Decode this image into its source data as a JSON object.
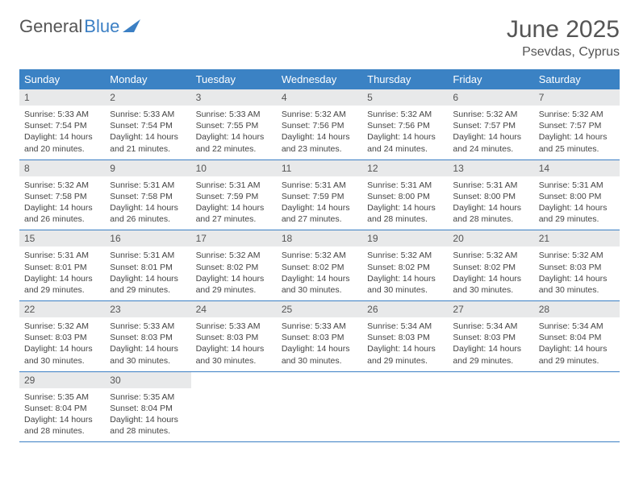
{
  "logo": {
    "gray": "General",
    "blue": "Blue"
  },
  "title": "June 2025",
  "location": "Psevdas, Cyprus",
  "colors": {
    "header_bg": "#3b82c4",
    "daynum_bg": "#e8e9ea",
    "week_border": "#3b7fc4",
    "text": "#444"
  },
  "weekdays": [
    "Sunday",
    "Monday",
    "Tuesday",
    "Wednesday",
    "Thursday",
    "Friday",
    "Saturday"
  ],
  "days": [
    {
      "n": "1",
      "sr": "5:33 AM",
      "ss": "7:54 PM",
      "dl": "14 hours and 20 minutes."
    },
    {
      "n": "2",
      "sr": "5:33 AM",
      "ss": "7:54 PM",
      "dl": "14 hours and 21 minutes."
    },
    {
      "n": "3",
      "sr": "5:33 AM",
      "ss": "7:55 PM",
      "dl": "14 hours and 22 minutes."
    },
    {
      "n": "4",
      "sr": "5:32 AM",
      "ss": "7:56 PM",
      "dl": "14 hours and 23 minutes."
    },
    {
      "n": "5",
      "sr": "5:32 AM",
      "ss": "7:56 PM",
      "dl": "14 hours and 24 minutes."
    },
    {
      "n": "6",
      "sr": "5:32 AM",
      "ss": "7:57 PM",
      "dl": "14 hours and 24 minutes."
    },
    {
      "n": "7",
      "sr": "5:32 AM",
      "ss": "7:57 PM",
      "dl": "14 hours and 25 minutes."
    },
    {
      "n": "8",
      "sr": "5:32 AM",
      "ss": "7:58 PM",
      "dl": "14 hours and 26 minutes."
    },
    {
      "n": "9",
      "sr": "5:31 AM",
      "ss": "7:58 PM",
      "dl": "14 hours and 26 minutes."
    },
    {
      "n": "10",
      "sr": "5:31 AM",
      "ss": "7:59 PM",
      "dl": "14 hours and 27 minutes."
    },
    {
      "n": "11",
      "sr": "5:31 AM",
      "ss": "7:59 PM",
      "dl": "14 hours and 27 minutes."
    },
    {
      "n": "12",
      "sr": "5:31 AM",
      "ss": "8:00 PM",
      "dl": "14 hours and 28 minutes."
    },
    {
      "n": "13",
      "sr": "5:31 AM",
      "ss": "8:00 PM",
      "dl": "14 hours and 28 minutes."
    },
    {
      "n": "14",
      "sr": "5:31 AM",
      "ss": "8:00 PM",
      "dl": "14 hours and 29 minutes."
    },
    {
      "n": "15",
      "sr": "5:31 AM",
      "ss": "8:01 PM",
      "dl": "14 hours and 29 minutes."
    },
    {
      "n": "16",
      "sr": "5:31 AM",
      "ss": "8:01 PM",
      "dl": "14 hours and 29 minutes."
    },
    {
      "n": "17",
      "sr": "5:32 AM",
      "ss": "8:02 PM",
      "dl": "14 hours and 29 minutes."
    },
    {
      "n": "18",
      "sr": "5:32 AM",
      "ss": "8:02 PM",
      "dl": "14 hours and 30 minutes."
    },
    {
      "n": "19",
      "sr": "5:32 AM",
      "ss": "8:02 PM",
      "dl": "14 hours and 30 minutes."
    },
    {
      "n": "20",
      "sr": "5:32 AM",
      "ss": "8:02 PM",
      "dl": "14 hours and 30 minutes."
    },
    {
      "n": "21",
      "sr": "5:32 AM",
      "ss": "8:03 PM",
      "dl": "14 hours and 30 minutes."
    },
    {
      "n": "22",
      "sr": "5:32 AM",
      "ss": "8:03 PM",
      "dl": "14 hours and 30 minutes."
    },
    {
      "n": "23",
      "sr": "5:33 AM",
      "ss": "8:03 PM",
      "dl": "14 hours and 30 minutes."
    },
    {
      "n": "24",
      "sr": "5:33 AM",
      "ss": "8:03 PM",
      "dl": "14 hours and 30 minutes."
    },
    {
      "n": "25",
      "sr": "5:33 AM",
      "ss": "8:03 PM",
      "dl": "14 hours and 30 minutes."
    },
    {
      "n": "26",
      "sr": "5:34 AM",
      "ss": "8:03 PM",
      "dl": "14 hours and 29 minutes."
    },
    {
      "n": "27",
      "sr": "5:34 AM",
      "ss": "8:03 PM",
      "dl": "14 hours and 29 minutes."
    },
    {
      "n": "28",
      "sr": "5:34 AM",
      "ss": "8:04 PM",
      "dl": "14 hours and 29 minutes."
    },
    {
      "n": "29",
      "sr": "5:35 AM",
      "ss": "8:04 PM",
      "dl": "14 hours and 28 minutes."
    },
    {
      "n": "30",
      "sr": "5:35 AM",
      "ss": "8:04 PM",
      "dl": "14 hours and 28 minutes."
    }
  ],
  "labels": {
    "sunrise": "Sunrise:",
    "sunset": "Sunset:",
    "daylight": "Daylight:"
  }
}
